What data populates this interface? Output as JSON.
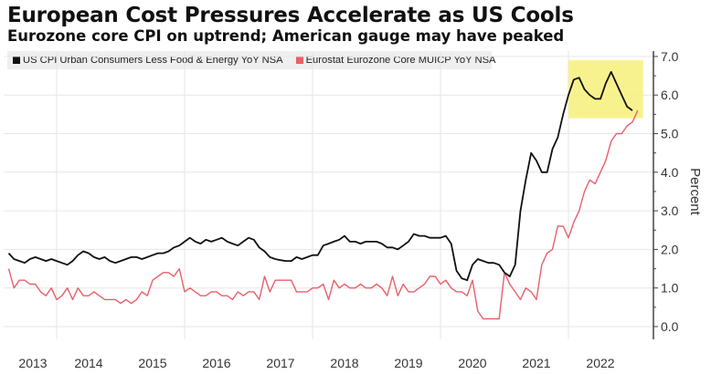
{
  "title": "European Cost Pressures Accelerate as US Cools",
  "subtitle": "Eurozone core CPI on uptrend; American gauge may have peaked",
  "chart_data": {
    "type": "line",
    "title": "European Cost Pressures Accelerate as US Cools",
    "subtitle": "Eurozone core CPI on uptrend; American gauge may have peaked",
    "xlabel": "",
    "ylabel": "Percent",
    "ylim": [
      0,
      7
    ],
    "yticks": [
      "0.0",
      "1.0",
      "2.0",
      "3.0",
      "4.0",
      "5.0",
      "6.0",
      "7.0"
    ],
    "xticks": [
      "2013",
      "2014",
      "2015",
      "2016",
      "2017",
      "2018",
      "2019",
      "2020",
      "2021",
      "2022"
    ],
    "x_start": "2013-04",
    "x_frequency": "monthly",
    "grid": true,
    "legend_position": "top-left",
    "highlight": {
      "description": "yellow box around recent US peak",
      "x_range": [
        "2022-01",
        "2023-03"
      ],
      "y_range": [
        5.4,
        6.9
      ],
      "color": "#f7f07a"
    },
    "series": [
      {
        "name": "US CPI Urban Consumers Less Food & Energy YoY NSA",
        "color": "#111111",
        "values": [
          1.9,
          1.75,
          1.7,
          1.65,
          1.75,
          1.8,
          1.75,
          1.7,
          1.75,
          1.7,
          1.65,
          1.6,
          1.7,
          1.85,
          1.95,
          1.9,
          1.8,
          1.75,
          1.8,
          1.7,
          1.65,
          1.7,
          1.75,
          1.8,
          1.8,
          1.75,
          1.8,
          1.85,
          1.9,
          1.9,
          1.95,
          2.05,
          2.1,
          2.2,
          2.3,
          2.2,
          2.15,
          2.25,
          2.2,
          2.25,
          2.3,
          2.2,
          2.15,
          2.1,
          2.2,
          2.3,
          2.25,
          2.05,
          1.95,
          1.8,
          1.75,
          1.72,
          1.7,
          1.7,
          1.8,
          1.75,
          1.8,
          1.85,
          1.85,
          2.1,
          2.15,
          2.2,
          2.25,
          2.35,
          2.2,
          2.2,
          2.15,
          2.2,
          2.2,
          2.2,
          2.15,
          2.05,
          2.05,
          2.0,
          2.1,
          2.2,
          2.4,
          2.35,
          2.35,
          2.3,
          2.3,
          2.3,
          2.35,
          2.15,
          1.45,
          1.25,
          1.2,
          1.6,
          1.75,
          1.7,
          1.65,
          1.65,
          1.6,
          1.4,
          1.3,
          1.6,
          3.0,
          3.8,
          4.5,
          4.3,
          4.0,
          4.0,
          4.6,
          4.9,
          5.5,
          6.0,
          6.4,
          6.45,
          6.15,
          6.0,
          5.9,
          5.9,
          6.3,
          6.6,
          6.3,
          6.0,
          5.7,
          5.6
        ],
        "end_label": "5.6"
      },
      {
        "name": "Eurostat Eurozone Core MUICP YoY NSA",
        "color": "#e8606a",
        "values": [
          1.5,
          1.0,
          1.2,
          1.2,
          1.1,
          1.1,
          0.9,
          0.8,
          1.0,
          0.7,
          0.8,
          1.0,
          0.7,
          1.0,
          0.8,
          0.8,
          0.9,
          0.8,
          0.7,
          0.7,
          0.7,
          0.6,
          0.7,
          0.6,
          0.7,
          0.9,
          0.8,
          1.2,
          1.3,
          1.4,
          1.4,
          1.3,
          1.5,
          0.9,
          1.0,
          0.9,
          0.8,
          0.8,
          0.9,
          0.9,
          0.8,
          0.8,
          0.7,
          0.9,
          0.8,
          0.9,
          0.9,
          0.7,
          1.3,
          0.9,
          1.2,
          1.2,
          1.2,
          1.2,
          0.9,
          0.9,
          0.9,
          1.0,
          1.0,
          1.1,
          0.7,
          1.2,
          1.0,
          1.1,
          1.0,
          1.0,
          1.1,
          1.0,
          1.0,
          1.1,
          1.0,
          0.8,
          1.3,
          0.8,
          1.1,
          0.9,
          0.9,
          1.0,
          1.1,
          1.3,
          1.3,
          1.1,
          1.2,
          1.0,
          0.9,
          0.9,
          0.8,
          1.2,
          0.4,
          0.2,
          0.2,
          0.2,
          0.2,
          1.4,
          1.1,
          0.9,
          0.7,
          1.0,
          0.9,
          0.7,
          1.6,
          1.9,
          2.0,
          2.6,
          2.6,
          2.3,
          2.7,
          3.0,
          3.5,
          3.8,
          3.7,
          4.0,
          4.3,
          4.8,
          5.0,
          5.0,
          5.2,
          5.3,
          5.6
        ],
        "end_label": "5.6"
      }
    ]
  }
}
